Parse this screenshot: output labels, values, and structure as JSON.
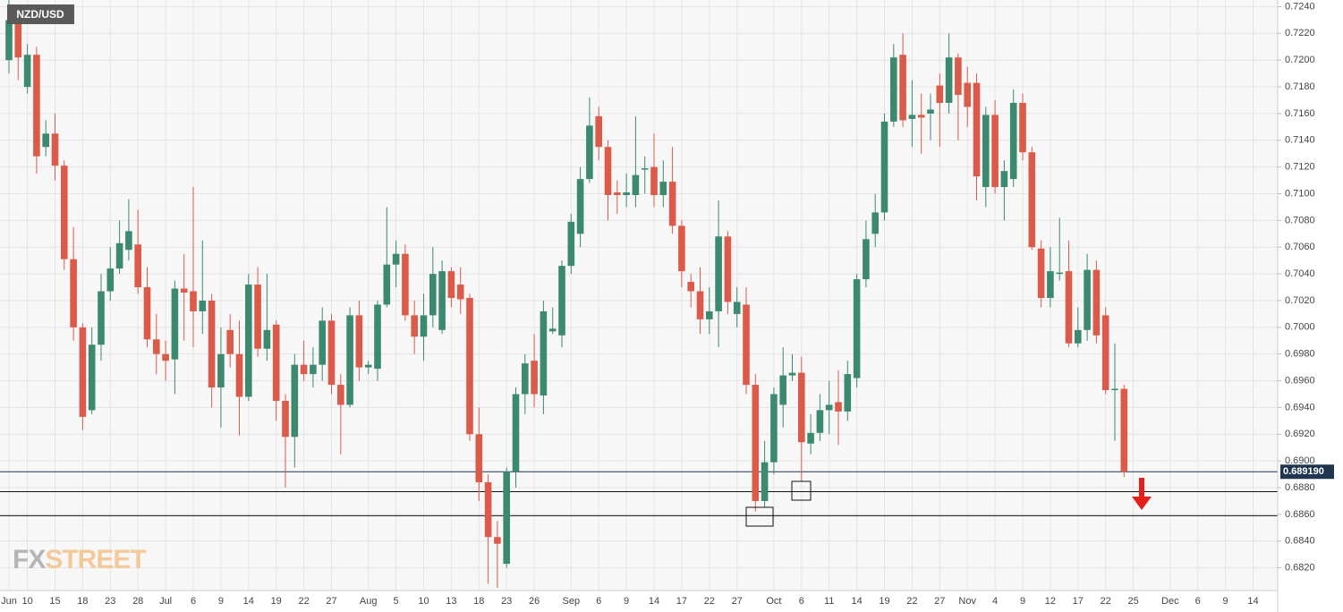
{
  "chart_data": {
    "type": "candlestick",
    "title": "NZD/USD",
    "logo": [
      "FX",
      "STREET"
    ],
    "up_color": "#3b8a6f",
    "down_color": "#db5a49",
    "grid": true,
    "categories": [
      "Jun",
      null,
      "10",
      null,
      null,
      "15",
      null,
      null,
      "18",
      null,
      null,
      "23",
      null,
      null,
      "28",
      null,
      null,
      "Jul",
      null,
      null,
      "6",
      null,
      null,
      "9",
      null,
      null,
      "14",
      null,
      null,
      "19",
      null,
      null,
      "22",
      null,
      null,
      "27",
      null,
      null,
      null,
      "Aug",
      null,
      null,
      "5",
      null,
      null,
      "10",
      null,
      null,
      "13",
      null,
      null,
      "18",
      null,
      null,
      "23",
      null,
      null,
      "26",
      null,
      null,
      null,
      "Sep",
      null,
      null,
      "6",
      null,
      null,
      "9",
      null,
      null,
      "14",
      null,
      null,
      "17",
      null,
      null,
      "22",
      null,
      null,
      "27",
      null,
      null,
      null,
      "Oct",
      null,
      null,
      "6",
      null,
      null,
      "11",
      null,
      null,
      "14",
      null,
      null,
      "19",
      null,
      null,
      "22",
      null,
      null,
      "27",
      null,
      null,
      "Nov",
      null,
      null,
      "4",
      null,
      null,
      "9",
      null,
      null,
      "12",
      null,
      null,
      "17",
      null,
      null,
      "22",
      null,
      null,
      "25",
      null,
      null,
      null,
      "Dec",
      null,
      null,
      "6",
      null,
      null,
      "9",
      null,
      null,
      "14",
      null,
      null
    ],
    "open": [
      0.72,
      0.7232,
      0.718,
      0.7204,
      0.7135,
      0.7145,
      0.7121,
      0.7051,
      0.7,
      0.6938,
      0.6987,
      0.7027,
      0.7044,
      0.7058,
      0.7062,
      0.703,
      0.6991,
      0.698,
      0.6976,
      0.7029,
      0.7027,
      0.7012,
      0.702,
      0.6955,
      0.6998,
      0.698,
      0.6948,
      0.7032,
      0.6984,
      0.7002,
      0.6945,
      0.6918,
      0.6972,
      0.6965,
      0.6972,
      0.7005,
      0.6957,
      0.6942,
      0.7009,
      0.697,
      0.6969,
      0.7017,
      0.7047,
      0.7055,
      0.7009,
      0.6993,
      0.7009,
      0.6998,
      0.7042,
      0.7032,
      0.7022,
      0.692,
      0.6884,
      0.6843,
      0.6823,
      0.6892,
      0.695,
      0.6975,
      0.6949,
      0.6997,
      0.6994,
      0.7046,
      0.707,
      0.7111,
      0.7158,
      0.7135,
      0.7101,
      0.7099,
      0.7099,
      0.7118,
      0.712,
      0.7099,
      0.7109,
      0.7076,
      0.7034,
      0.7027,
      0.7006,
      0.7012,
      0.7068,
      0.701,
      0.7017,
      0.6957,
      0.687,
      0.6899,
      0.6942,
      0.6964,
      0.6966,
      0.6913,
      0.6921,
      0.6938,
      0.6944,
      0.6937,
      0.6962,
      0.7036,
      0.707,
      0.7086,
      0.7154,
      0.7204,
      0.7156,
      0.7159,
      0.716,
      0.7181,
      0.7168,
      0.7202,
      0.7183,
      0.7183,
      0.7105,
      0.7159,
      0.7105,
      0.7111,
      0.7168,
      0.7131,
      0.7059,
      0.7022,
      0.704,
      0.7042,
      0.6988,
      0.6998,
      0.7043,
      0.7009,
      0.6953,
      0.6954,
      null,
      null,
      null,
      null,
      null,
      null,
      null,
      null,
      null,
      null,
      null,
      null,
      null,
      null,
      null,
      null
    ],
    "high": [
      0.7245,
      0.724,
      0.7212,
      0.721,
      0.7155,
      0.716,
      0.7125,
      0.7075,
      0.7003,
      0.7,
      0.704,
      0.706,
      0.708,
      0.7096,
      0.7088,
      0.7045,
      0.701,
      0.699,
      0.7035,
      0.7055,
      0.7105,
      0.7065,
      0.7025,
      0.7,
      0.701,
      0.7005,
      0.704,
      0.7045,
      0.704,
      0.7005,
      0.695,
      0.698,
      0.699,
      0.6985,
      0.7015,
      0.701,
      0.6965,
      0.7015,
      0.702,
      0.6975,
      0.702,
      0.709,
      0.7065,
      0.7062,
      0.702,
      0.7025,
      0.706,
      0.705,
      0.7045,
      0.7045,
      0.7025,
      0.694,
      0.689,
      0.6855,
      0.6895,
      0.6955,
      0.698,
      0.6995,
      0.702,
      0.7015,
      0.705,
      0.7085,
      0.712,
      0.7172,
      0.7165,
      0.714,
      0.711,
      0.7115,
      0.7158,
      0.7128,
      0.7145,
      0.7125,
      0.7135,
      0.708,
      0.704,
      0.7045,
      0.703,
      0.7095,
      0.7072,
      0.703,
      0.703,
      0.6965,
      0.6915,
      0.6955,
      0.6985,
      0.698,
      0.6978,
      0.6935,
      0.695,
      0.696,
      0.6968,
      0.6975,
      0.704,
      0.708,
      0.71,
      0.716,
      0.7212,
      0.722,
      0.7185,
      0.7175,
      0.7175,
      0.719,
      0.722,
      0.7205,
      0.7195,
      0.719,
      0.7165,
      0.717,
      0.7125,
      0.7178,
      0.7175,
      0.7135,
      0.7065,
      0.706,
      0.7082,
      0.7065,
      0.7015,
      0.7055,
      0.705,
      0.7015,
      0.6988,
      0.6957,
      null,
      null,
      null,
      null,
      null,
      null,
      null,
      null,
      null,
      null,
      null,
      null,
      null,
      null,
      null,
      null
    ],
    "low": [
      0.719,
      0.7185,
      0.7175,
      0.7115,
      0.7128,
      0.711,
      0.7043,
      0.699,
      0.6923,
      0.6935,
      0.6975,
      0.702,
      0.704,
      0.705,
      0.7025,
      0.6985,
      0.6965,
      0.696,
      0.695,
      0.699,
      0.6985,
      0.6995,
      0.694,
      0.6925,
      0.697,
      0.6919,
      0.6945,
      0.6978,
      0.6975,
      0.693,
      0.688,
      0.6895,
      0.696,
      0.6955,
      0.696,
      0.695,
      0.6905,
      0.694,
      0.696,
      0.6965,
      0.696,
      0.7015,
      0.703,
      0.7005,
      0.698,
      0.6975,
      0.7,
      0.6995,
      0.7015,
      0.701,
      0.6915,
      0.687,
      0.6808,
      0.6805,
      0.682,
      0.688,
      0.6935,
      0.694,
      0.6935,
      0.6995,
      0.6985,
      0.704,
      0.706,
      0.7108,
      0.7125,
      0.708,
      0.7085,
      0.709,
      0.709,
      0.71,
      0.709,
      0.709,
      0.707,
      0.703,
      0.7015,
      0.6995,
      0.6995,
      0.6985,
      0.701,
      0.7,
      0.695,
      0.6862,
      0.6865,
      0.689,
      0.6925,
      0.696,
      0.6885,
      0.6905,
      0.6915,
      0.692,
      0.6912,
      0.693,
      0.6955,
      0.703,
      0.706,
      0.708,
      0.715,
      0.715,
      0.7135,
      0.713,
      0.714,
      0.7135,
      0.716,
      0.714,
      0.715,
      0.7095,
      0.709,
      0.71,
      0.708,
      0.7105,
      0.7125,
      0.7058,
      0.7015,
      0.7015,
      0.7035,
      0.6985,
      0.6985,
      0.699,
      0.6988,
      0.695,
      0.6915,
      0.6888,
      null,
      null,
      null,
      null,
      null,
      null,
      null,
      null,
      null,
      null,
      null,
      null,
      null,
      null,
      null,
      null
    ],
    "close": [
      0.723,
      0.7202,
      0.7204,
      0.7128,
      0.7145,
      0.7121,
      0.7051,
      0.7,
      0.6933,
      0.6987,
      0.7027,
      0.7044,
      0.7063,
      0.7072,
      0.703,
      0.6991,
      0.698,
      0.6975,
      0.7029,
      0.7026,
      0.7012,
      0.702,
      0.6955,
      0.698,
      0.698,
      0.6948,
      0.7032,
      0.6984,
      0.6998,
      0.6945,
      0.6918,
      0.6972,
      0.6965,
      0.6972,
      0.7005,
      0.6957,
      0.6942,
      0.7009,
      0.697,
      0.6972,
      0.7017,
      0.7047,
      0.7055,
      0.7009,
      0.6993,
      0.7009,
      0.704,
      0.7042,
      0.7022,
      0.7021,
      0.692,
      0.6884,
      0.6843,
      0.6838,
      0.6892,
      0.695,
      0.6973,
      0.695,
      0.7012,
      0.6999,
      0.7046,
      0.7079,
      0.7111,
      0.7151,
      0.7135,
      0.7099,
      0.7099,
      0.7101,
      0.7114,
      0.7119,
      0.7099,
      0.7109,
      0.7076,
      0.7042,
      0.7027,
      0.7006,
      0.7012,
      0.7068,
      0.7019,
      0.7019,
      0.6957,
      0.687,
      0.6899,
      0.695,
      0.6964,
      0.6966,
      0.6914,
      0.6921,
      0.6938,
      0.6942,
      0.6937,
      0.6965,
      0.7036,
      0.7066,
      0.7086,
      0.7154,
      0.7202,
      0.7155,
      0.7159,
      0.7157,
      0.7163,
      0.7168,
      0.7202,
      0.7174,
      0.7165,
      0.7113,
      0.7159,
      0.7105,
      0.7117,
      0.7168,
      0.7131,
      0.706,
      0.7022,
      0.7042,
      0.7041,
      0.6988,
      0.6998,
      0.7043,
      0.6994,
      0.6953,
      0.6954,
      0.68919,
      null,
      null,
      null,
      null,
      null,
      null,
      null,
      null,
      null,
      null,
      null,
      null,
      null,
      null,
      null,
      null
    ],
    "last_price": {
      "value": 0.68919,
      "label": "0.689190"
    },
    "support_levels": [
      0.6877,
      0.6859
    ],
    "ylim": [
      0.6803,
      0.7245
    ],
    "yticks": [
      {
        "value": 0.682,
        "label": "0.6820"
      },
      {
        "value": 0.684,
        "label": "0.6840"
      },
      {
        "value": 0.686,
        "label": "0.6860"
      },
      {
        "value": 0.688,
        "label": "0.6880"
      },
      {
        "value": 0.69,
        "label": "0.6900"
      },
      {
        "value": 0.692,
        "label": "0.6920"
      },
      {
        "value": 0.694,
        "label": "0.6940"
      },
      {
        "value": 0.696,
        "label": "0.6960"
      },
      {
        "value": 0.698,
        "label": "0.6980"
      },
      {
        "value": 0.7,
        "label": "0.7000"
      },
      {
        "value": 0.702,
        "label": "0.7020"
      },
      {
        "value": 0.704,
        "label": "0.7040"
      },
      {
        "value": 0.706,
        "label": "0.7060"
      },
      {
        "value": 0.708,
        "label": "0.7080"
      },
      {
        "value": 0.71,
        "label": "0.7100"
      },
      {
        "value": 0.712,
        "label": "0.7120"
      },
      {
        "value": 0.714,
        "label": "0.7140"
      },
      {
        "value": 0.716,
        "label": "0.7160"
      },
      {
        "value": 0.718,
        "label": "0.7180"
      },
      {
        "value": 0.72,
        "label": "0.7200"
      },
      {
        "value": 0.722,
        "label": "0.7220"
      },
      {
        "value": 0.724,
        "label": "0.7240"
      }
    ]
  }
}
